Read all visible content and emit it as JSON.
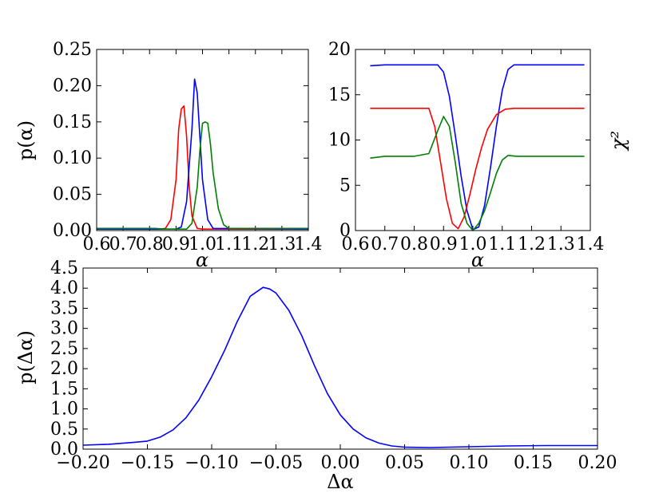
{
  "chart_data": [
    {
      "type": "line",
      "title": "",
      "xlabel": "α",
      "ylabel": "p(α)",
      "xlim": [
        0.6,
        1.4
      ],
      "ylim": [
        0.0,
        0.25
      ],
      "xtick_labels": [
        "0.6",
        "0.7",
        "0.8",
        "0.9",
        "1.0",
        "1.1",
        "1.2",
        "1.3",
        "1.4"
      ],
      "ytick_labels": [
        "0.00",
        "0.05",
        "0.10",
        "0.15",
        "0.20",
        "0.25"
      ],
      "grid": false,
      "series": [
        {
          "color": "#ff0000",
          "x": [
            0.6,
            0.8,
            0.84,
            0.86,
            0.88,
            0.9,
            0.91,
            0.92,
            0.93,
            0.94,
            0.95,
            0.96,
            0.98,
            1.0,
            1.4
          ],
          "y": [
            0.002,
            0.002,
            0.002,
            0.003,
            0.015,
            0.07,
            0.14,
            0.168,
            0.172,
            0.13,
            0.06,
            0.02,
            0.003,
            0.002,
            0.002
          ]
        },
        {
          "color": "#0000ff",
          "x": [
            0.6,
            0.9,
            0.92,
            0.94,
            0.95,
            0.96,
            0.97,
            0.98,
            0.99,
            1.0,
            1.02,
            1.04,
            1.4
          ],
          "y": [
            0.002,
            0.002,
            0.005,
            0.04,
            0.09,
            0.14,
            0.209,
            0.19,
            0.13,
            0.07,
            0.015,
            0.003,
            0.002
          ]
        },
        {
          "color": "#008000",
          "x": [
            0.6,
            0.82,
            0.86,
            0.9,
            0.94,
            0.96,
            0.98,
            0.99,
            1.0,
            1.01,
            1.02,
            1.03,
            1.04,
            1.06,
            1.08,
            1.1,
            1.4
          ],
          "y": [
            0.003,
            0.003,
            0.002,
            0.002,
            0.002,
            0.01,
            0.06,
            0.11,
            0.148,
            0.15,
            0.148,
            0.12,
            0.08,
            0.03,
            0.008,
            0.003,
            0.003
          ]
        }
      ]
    },
    {
      "type": "line",
      "title": "",
      "xlabel": "α",
      "ylabel": "χ²",
      "ylabel_side": "right",
      "xlim": [
        0.6,
        1.4
      ],
      "ylim": [
        0,
        20
      ],
      "xtick_labels": [
        "0.6",
        "0.7",
        "0.8",
        "0.9",
        "1.0",
        "1.1",
        "1.2",
        "1.3",
        "1.4"
      ],
      "ytick_labels": [
        "0",
        "5",
        "10",
        "15",
        "20"
      ],
      "grid": false,
      "series": [
        {
          "color": "#0000ff",
          "x": [
            0.65,
            0.7,
            0.8,
            0.88,
            0.9,
            0.92,
            0.94,
            0.96,
            0.98,
            1.0,
            1.02,
            1.04,
            1.06,
            1.08,
            1.1,
            1.12,
            1.14,
            1.2,
            1.3,
            1.38
          ],
          "y": [
            18.2,
            18.3,
            18.3,
            18.3,
            17.5,
            14.8,
            10.5,
            6.0,
            2.2,
            0.1,
            0.4,
            2.8,
            7.0,
            11.5,
            15.5,
            17.8,
            18.3,
            18.3,
            18.3,
            18.3
          ]
        },
        {
          "color": "#ff0000",
          "x": [
            0.65,
            0.7,
            0.8,
            0.85,
            0.87,
            0.89,
            0.91,
            0.93,
            0.95,
            0.97,
            0.99,
            1.01,
            1.03,
            1.05,
            1.08,
            1.11,
            1.14,
            1.2,
            1.3,
            1.38
          ],
          "y": [
            13.5,
            13.5,
            13.5,
            13.5,
            11.5,
            7.5,
            3.5,
            0.8,
            0.2,
            1.5,
            4.0,
            6.8,
            9.2,
            11.2,
            12.8,
            13.4,
            13.5,
            13.5,
            13.5,
            13.5
          ]
        },
        {
          "color": "#008000",
          "x": [
            0.65,
            0.7,
            0.8,
            0.85,
            0.88,
            0.9,
            0.92,
            0.94,
            0.96,
            0.98,
            1.0,
            1.02,
            1.04,
            1.06,
            1.08,
            1.1,
            1.12,
            1.15,
            1.2,
            1.3,
            1.38
          ],
          "y": [
            8.0,
            8.2,
            8.2,
            8.5,
            11.0,
            12.6,
            11.5,
            7.5,
            3.0,
            0.8,
            0.0,
            0.8,
            2.2,
            4.2,
            6.3,
            7.8,
            8.3,
            8.2,
            8.2,
            8.2,
            8.2
          ]
        }
      ]
    },
    {
      "type": "line",
      "title": "",
      "xlabel": "Δα",
      "ylabel": "p(Δα)",
      "xlim": [
        -0.2,
        0.2
      ],
      "ylim": [
        0.0,
        4.5
      ],
      "xtick_labels": [
        "−0.20",
        "−0.15",
        "−0.10",
        "−0.05",
        "0.00",
        "0.05",
        "0.10",
        "0.15",
        "0.20"
      ],
      "ytick_labels": [
        "0.0",
        "0.5",
        "1.0",
        "1.5",
        "2.0",
        "2.5",
        "3.0",
        "3.5",
        "4.0",
        "4.5"
      ],
      "grid": false,
      "series": [
        {
          "color": "#0000ff",
          "x": [
            -0.2,
            -0.18,
            -0.16,
            -0.15,
            -0.14,
            -0.13,
            -0.12,
            -0.11,
            -0.1,
            -0.09,
            -0.08,
            -0.07,
            -0.06,
            -0.055,
            -0.05,
            -0.04,
            -0.03,
            -0.02,
            -0.01,
            0.0,
            0.01,
            0.02,
            0.03,
            0.04,
            0.05,
            0.07,
            0.1,
            0.13,
            0.16,
            0.2
          ],
          "y": [
            0.1,
            0.12,
            0.17,
            0.2,
            0.3,
            0.48,
            0.78,
            1.22,
            1.8,
            2.45,
            3.18,
            3.8,
            4.02,
            3.98,
            3.88,
            3.45,
            2.82,
            2.07,
            1.38,
            0.85,
            0.5,
            0.28,
            0.15,
            0.08,
            0.05,
            0.04,
            0.06,
            0.08,
            0.09,
            0.09
          ]
        }
      ]
    }
  ]
}
